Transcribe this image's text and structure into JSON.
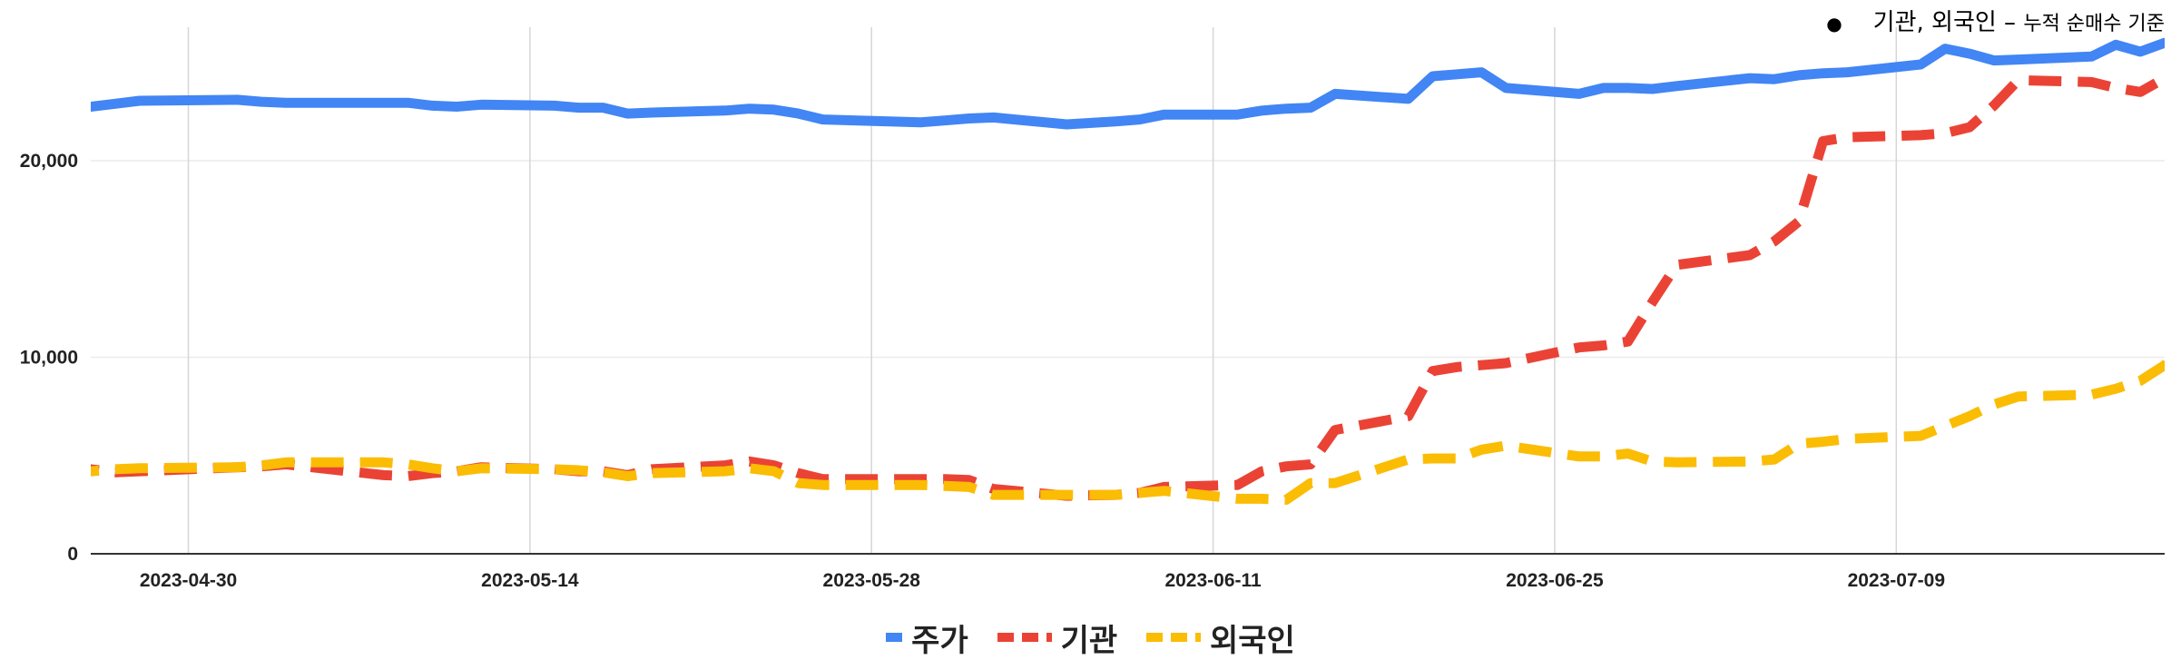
{
  "chart_data": {
    "type": "line",
    "annotation": {
      "label_main": "기관, 외국인",
      "label_sep": " – ",
      "label_small": "누적 순매수 기준"
    },
    "x": [
      "2023-04-25",
      "2023-04-26",
      "2023-04-27",
      "2023-04-28",
      "2023-05-02",
      "2023-05-03",
      "2023-05-04",
      "2023-05-08",
      "2023-05-09",
      "2023-05-10",
      "2023-05-11",
      "2023-05-12",
      "2023-05-15",
      "2023-05-16",
      "2023-05-17",
      "2023-05-18",
      "2023-05-19",
      "2023-05-22",
      "2023-05-23",
      "2023-05-24",
      "2023-05-25",
      "2023-05-26",
      "2023-05-30",
      "2023-05-31",
      "2023-06-01",
      "2023-06-02",
      "2023-06-05",
      "2023-06-07",
      "2023-06-08",
      "2023-06-09",
      "2023-06-12",
      "2023-06-13",
      "2023-06-14",
      "2023-06-15",
      "2023-06-16",
      "2023-06-19",
      "2023-06-20",
      "2023-06-21",
      "2023-06-22",
      "2023-06-23",
      "2023-06-26",
      "2023-06-27",
      "2023-06-28",
      "2023-06-29",
      "2023-06-30",
      "2023-07-03",
      "2023-07-04",
      "2023-07-05",
      "2023-07-06",
      "2023-07-07",
      "2023-07-10",
      "2023-07-11",
      "2023-07-12",
      "2023-07-13",
      "2023-07-14",
      "2023-07-17",
      "2023-07-18",
      "2023-07-19",
      "2023-07-20",
      "2023-07-21",
      "2023-07-24"
    ],
    "xlim": [
      "2023-04-26",
      "2023-07-20"
    ],
    "x_ticks": [
      "2023-04-30",
      "2023-05-14",
      "2023-05-28",
      "2023-06-11",
      "2023-06-25",
      "2023-07-09"
    ],
    "ylim": [
      0,
      26700
    ],
    "y_ticks": [
      "0",
      "10,000",
      "20,000"
    ],
    "y_tick_values": [
      0,
      10000,
      20000
    ],
    "grid": true,
    "legend_position": "bottom",
    "series": [
      {
        "name": "주가",
        "color": "#4285F4",
        "dash": "solid",
        "values": [
          22750,
          22750,
          22900,
          23050,
          23100,
          23000,
          22950,
          22950,
          22950,
          22800,
          22750,
          22850,
          22800,
          22700,
          22700,
          22400,
          22450,
          22550,
          22650,
          22600,
          22400,
          22100,
          21950,
          22050,
          22150,
          22200,
          21850,
          22000,
          22100,
          22350,
          22350,
          22550,
          22650,
          22700,
          23400,
          23150,
          24300,
          24400,
          24500,
          23700,
          23400,
          23700,
          23700,
          23650,
          23800,
          24200,
          24150,
          24350,
          24450,
          24500,
          24900,
          25700,
          25450,
          25100,
          25150,
          25300,
          25900,
          25550,
          26000,
          25800,
          26100
        ],
        "legend_label": "주가"
      },
      {
        "name": "기관",
        "color": "#EA4335",
        "dash": "dashed",
        "values": [
          4400,
          4300,
          4150,
          4200,
          4400,
          4450,
          4550,
          4000,
          3950,
          4100,
          4200,
          4400,
          4300,
          4200,
          4200,
          4000,
          4300,
          4500,
          4700,
          4500,
          4100,
          3800,
          3800,
          3800,
          3750,
          3300,
          2950,
          3000,
          3100,
          3400,
          3500,
          4200,
          4450,
          4550,
          6300,
          7000,
          9300,
          9500,
          9600,
          9700,
          10500,
          10600,
          10800,
          12800,
          14700,
          15200,
          15900,
          16900,
          21000,
          21200,
          21300,
          21400,
          21700,
          22800,
          24100,
          24000,
          23700,
          23500,
          24200,
          24300,
          24400
        ],
        "legend_label": "기관"
      },
      {
        "name": "외국인",
        "color": "#FBBC04",
        "dash": "dashed",
        "values": [
          4100,
          4200,
          4300,
          4350,
          4400,
          4500,
          4650,
          4650,
          4550,
          4350,
          4200,
          4350,
          4300,
          4250,
          4150,
          3950,
          4100,
          4200,
          4350,
          4200,
          3600,
          3500,
          3500,
          3450,
          3400,
          3000,
          3000,
          3000,
          3100,
          3200,
          2800,
          2800,
          2750,
          3600,
          3600,
          4800,
          4850,
          4850,
          5300,
          5500,
          4950,
          4950,
          5100,
          4700,
          4650,
          4700,
          4800,
          5600,
          5700,
          5850,
          6000,
          6500,
          7000,
          7600,
          8000,
          8100,
          8400,
          8800,
          9600,
          10800,
          11000
        ],
        "legend_label": "외국인"
      }
    ]
  }
}
